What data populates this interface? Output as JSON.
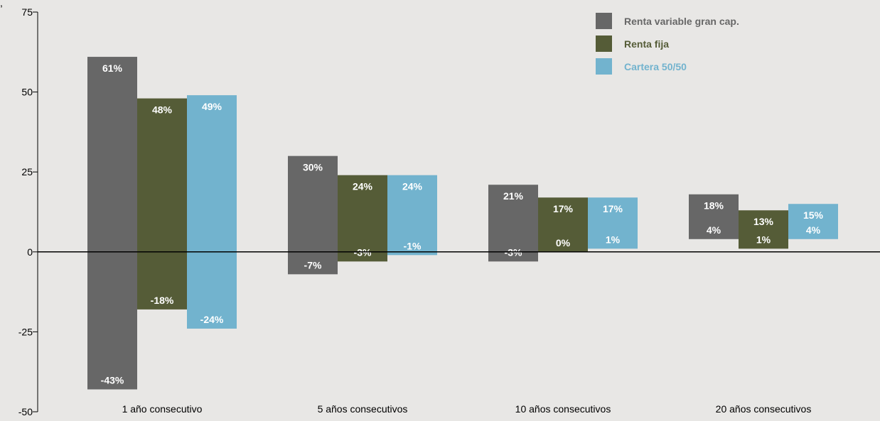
{
  "chart_data": {
    "type": "bar",
    "subtype": "floating-range",
    "categories": [
      "1 año consecutivo",
      "5 años consecutivos",
      "10 años consecutivos",
      "20 años consecutivos"
    ],
    "series": [
      {
        "name": "Renta variable gran cap.",
        "color": "#676767",
        "label_color": "#ffffff",
        "max": [
          61,
          30,
          21,
          18
        ],
        "min": [
          -43,
          -7,
          -3,
          4
        ],
        "max_labels": [
          "61%",
          "30%",
          "21%",
          "18%"
        ],
        "min_labels": [
          "-43%",
          "-7%",
          "-3%",
          "4%"
        ]
      },
      {
        "name": "Renta fija",
        "color": "#555c37",
        "label_color": "#ffffff",
        "max": [
          48,
          24,
          17,
          13
        ],
        "min": [
          -18,
          -3,
          0,
          1
        ],
        "max_labels": [
          "48%",
          "24%",
          "17%",
          "13%"
        ],
        "min_labels": [
          "-18%",
          "-3%",
          "0%",
          "1%"
        ]
      },
      {
        "name": "Cartera 50/50",
        "color": "#72b3ce",
        "label_color": "#ffffff",
        "max": [
          49,
          24,
          17,
          15
        ],
        "min": [
          -24,
          -1,
          1,
          4
        ],
        "max_labels": [
          "49%",
          "24%",
          "17%",
          "15%"
        ],
        "min_labels": [
          "-24%",
          "-1%",
          "1%",
          "4%"
        ]
      }
    ],
    "ylim": [
      -50,
      75
    ],
    "yticks": [
      -50,
      -25,
      0,
      25,
      50,
      75
    ],
    "ytick_labels": [
      "-50",
      "-25",
      "0",
      "25",
      "50",
      "75"
    ],
    "legend_position": "top-right",
    "grid": false,
    "header_fragment": ", "
  }
}
